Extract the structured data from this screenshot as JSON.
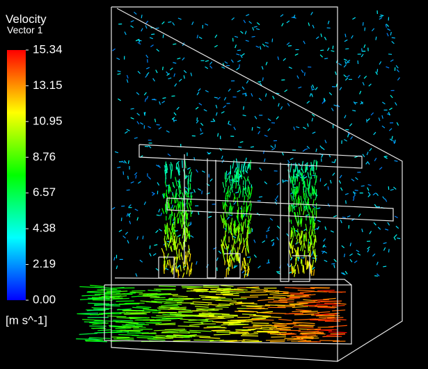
{
  "legend": {
    "title": "Velocity",
    "subtitle": "Vector 1",
    "ticks": [
      "15.34",
      "13.15",
      "10.95",
      "8.76",
      "6.57",
      "4.38",
      "2.19",
      "0.00"
    ],
    "unit": "[m s^-1]"
  }
}
